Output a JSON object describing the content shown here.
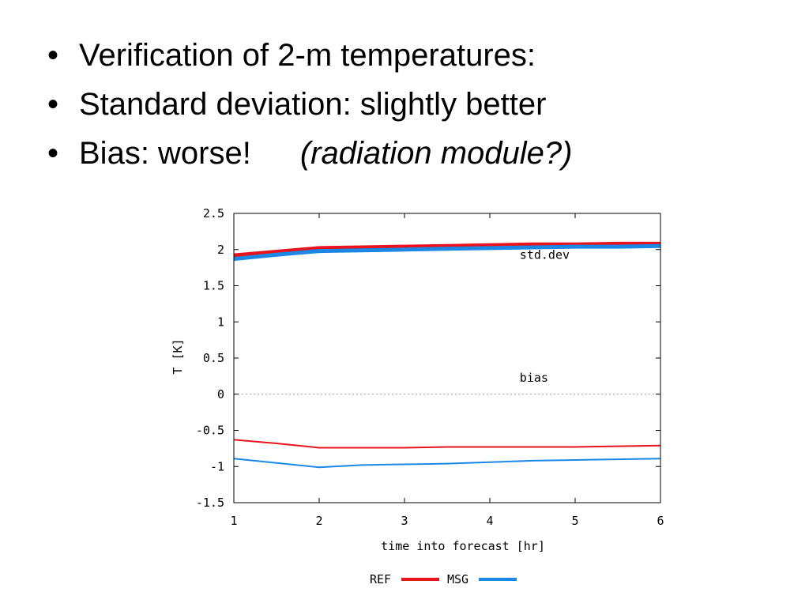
{
  "slide": {
    "bullets": [
      {
        "text": "Verification of 2-m temperatures:",
        "note": ""
      },
      {
        "text": "Standard deviation: slightly better",
        "note": ""
      },
      {
        "text": "Bias: worse!",
        "note": "(radiation module?)"
      }
    ]
  },
  "chart_data": {
    "type": "line",
    "xlabel": "time into forecast [hr]",
    "ylabel": "T [K]",
    "xlim": [
      1,
      6
    ],
    "ylim": [
      -1.5,
      2.5
    ],
    "xticks": [
      1,
      2,
      3,
      4,
      5,
      6
    ],
    "yticks": [
      -1.5,
      -1,
      -0.5,
      0,
      0.5,
      1,
      1.5,
      2,
      2.5
    ],
    "ytick_labels": [
      "-1.5",
      "-1",
      "-0.5",
      "0",
      "0.5",
      "1",
      "1.5",
      "2",
      "2.5"
    ],
    "grid": false,
    "zero_line": "dotted",
    "annotations": [
      {
        "text": "std.dev",
        "x": 4.35,
        "y": 1.87
      },
      {
        "text": "bias",
        "x": 4.35,
        "y": 0.17
      }
    ],
    "legend": {
      "placement": "bottom-center",
      "entries": [
        "REF",
        "MSG"
      ]
    },
    "series": [
      {
        "name": "REF",
        "group": "std.dev",
        "color": "#e8131d",
        "width": 5,
        "x": [
          1,
          1.5,
          2,
          2.5,
          3,
          3.5,
          4,
          4.5,
          5,
          5.5,
          6
        ],
        "y": [
          1.92,
          1.97,
          2.02,
          2.03,
          2.04,
          2.05,
          2.06,
          2.07,
          2.07,
          2.08,
          2.08
        ]
      },
      {
        "name": "MSG",
        "group": "std.dev",
        "color": "#1c88e6",
        "width": 5,
        "x": [
          1,
          1.5,
          2,
          2.5,
          3,
          3.5,
          4,
          4.5,
          5,
          5.5,
          6
        ],
        "y": [
          1.87,
          1.93,
          1.98,
          1.99,
          2.0,
          2.01,
          2.02,
          2.03,
          2.04,
          2.04,
          2.05
        ]
      },
      {
        "name": "REF",
        "group": "bias",
        "color": "#e8131d",
        "width": 2,
        "x": [
          1,
          1.5,
          2,
          2.5,
          3,
          3.5,
          4,
          4.5,
          5,
          5.5,
          6
        ],
        "y": [
          -0.63,
          -0.68,
          -0.74,
          -0.74,
          -0.74,
          -0.73,
          -0.73,
          -0.73,
          -0.73,
          -0.72,
          -0.71
        ]
      },
      {
        "name": "MSG",
        "group": "bias",
        "color": "#1c88e6",
        "width": 2,
        "x": [
          1,
          1.5,
          2,
          2.5,
          3,
          3.5,
          4,
          4.5,
          5,
          5.5,
          6
        ],
        "y": [
          -0.89,
          -0.95,
          -1.01,
          -0.98,
          -0.97,
          -0.96,
          -0.94,
          -0.92,
          -0.91,
          -0.9,
          -0.89
        ]
      }
    ]
  }
}
